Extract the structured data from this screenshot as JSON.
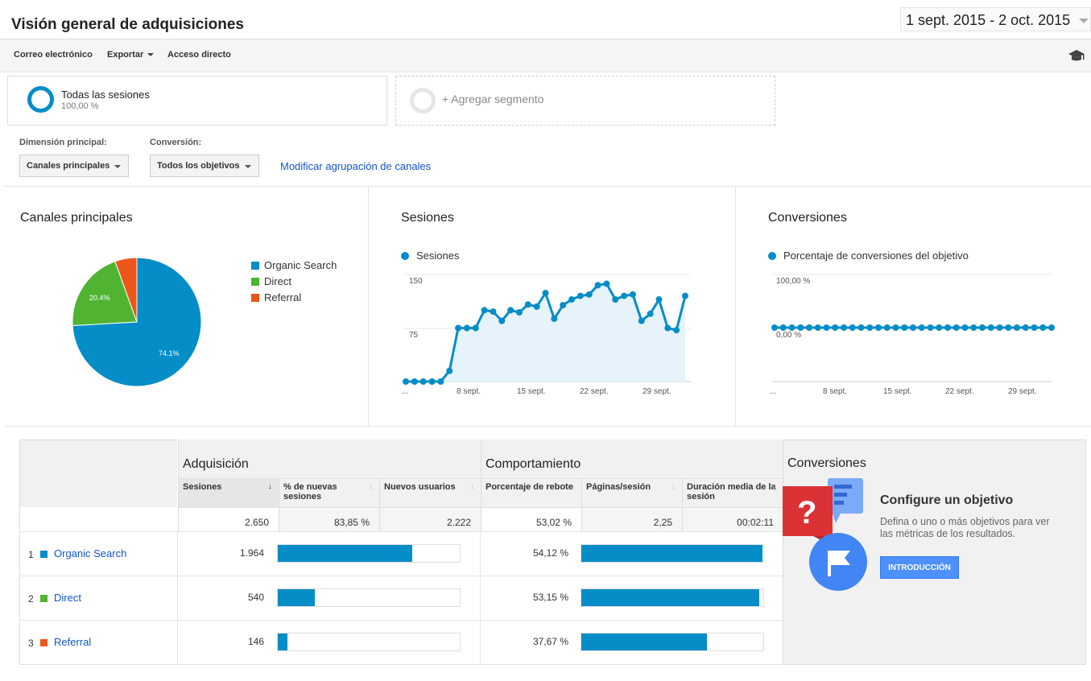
{
  "header": {
    "title": "Visión general de adquisiciones",
    "date_range": "1 sept. 2015 - 2 oct. 2015"
  },
  "toolbar": {
    "email": "Correo electrónico",
    "export": "Exportar",
    "shortcut": "Acceso directo",
    "icon": "graduation-cap-icon"
  },
  "segments": {
    "active": {
      "name": "Todas las sesiones",
      "percent": "100,00 %"
    },
    "add": "+ Agregar segmento"
  },
  "controls": {
    "primary_label": "Dimensión principal:",
    "primary_value": "Canales principales",
    "conversion_label": "Conversión:",
    "conversion_value": "Todos los objetivos",
    "modify_link": "Modificar agrupación de canales"
  },
  "colors": {
    "organic": "#058dc7",
    "direct": "#50b432",
    "referral": "#ed561b",
    "link": "#1155cc"
  },
  "charts": {
    "pie": {
      "title": "Canales principales",
      "legend": [
        "Organic Search",
        "Direct",
        "Referral"
      ],
      "label_organic": "74.1%",
      "label_direct": "20.4%"
    },
    "sessions": {
      "title": "Sesiones",
      "legend": "Sesiones",
      "y_top": "150",
      "y_mid": "75",
      "x_labels": [
        "...",
        "8 sept.",
        "15 sept.",
        "22 sept.",
        "29 sept."
      ]
    },
    "conversions": {
      "title": "Conversiones",
      "legend": "Porcentaje de conversiones del objetivo",
      "y_top": "100,00 %",
      "y_zero": "0,00 %",
      "x_labels": [
        "...",
        "8 sept.",
        "15 sept.",
        "22 sept.",
        "29 sept."
      ]
    }
  },
  "chart_data": [
    {
      "type": "pie",
      "title": "Canales principales",
      "categories": [
        "Organic Search",
        "Direct",
        "Referral"
      ],
      "values": [
        74.1,
        20.4,
        5.5
      ]
    },
    {
      "type": "area",
      "title": "Sesiones",
      "series": [
        {
          "name": "Sesiones",
          "values": [
            0,
            0,
            0,
            0,
            0,
            15,
            75,
            75,
            75,
            100,
            98,
            85,
            100,
            97,
            108,
            105,
            124,
            88,
            107,
            115,
            120,
            122,
            135,
            137,
            115,
            120,
            122,
            85,
            95,
            115,
            75,
            72,
            120
          ]
        }
      ],
      "ylim": [
        0,
        150
      ]
    },
    {
      "type": "line",
      "title": "Conversiones",
      "series": [
        {
          "name": "Porcentaje de conversiones del objetivo",
          "values": [
            0,
            0,
            0,
            0,
            0,
            0,
            0,
            0,
            0,
            0,
            0,
            0,
            0,
            0,
            0,
            0,
            0,
            0,
            0,
            0,
            0,
            0,
            0,
            0,
            0,
            0,
            0,
            0,
            0,
            0,
            0,
            0,
            0
          ]
        }
      ],
      "ylim": [
        0,
        100
      ]
    }
  ],
  "table": {
    "groups": {
      "acquisition": "Adquisición",
      "behavior": "Comportamiento",
      "conversions": "Conversiones"
    },
    "columns": {
      "sessions": "Sesiones",
      "new_sessions": "% de nuevas sesiones",
      "new_users": "Nuevos usuarios",
      "bounce": "Porcentaje de rebote",
      "pages": "Páginas/sesión",
      "duration": "Duración media de la sesión"
    },
    "totals": {
      "sessions": "2.650",
      "new_sessions": "83,85 %",
      "new_users": "2.222",
      "bounce": "53,02 %",
      "pages": "2,25",
      "duration": "00:02:11"
    },
    "rows": [
      {
        "index": "1",
        "name": "Organic Search",
        "sessions": "1.964",
        "sessions_share": 0.741,
        "bounce": "54,12 %",
        "bounce_share": 0.9935
      },
      {
        "index": "2",
        "name": "Direct",
        "sessions": "540",
        "sessions_share": 0.204,
        "bounce": "53,15 %",
        "bounce_share": 0.9757
      },
      {
        "index": "3",
        "name": "Referral",
        "sessions": "146",
        "sessions_share": 0.055,
        "bounce": "37,67 %",
        "bounce_share": 0.6915
      }
    ]
  },
  "goal": {
    "title": "Configure un objetivo",
    "description": "Defina o uno o más objetivos para ver las métricas de los resultados.",
    "button": "INTRODUCCIÓN"
  }
}
